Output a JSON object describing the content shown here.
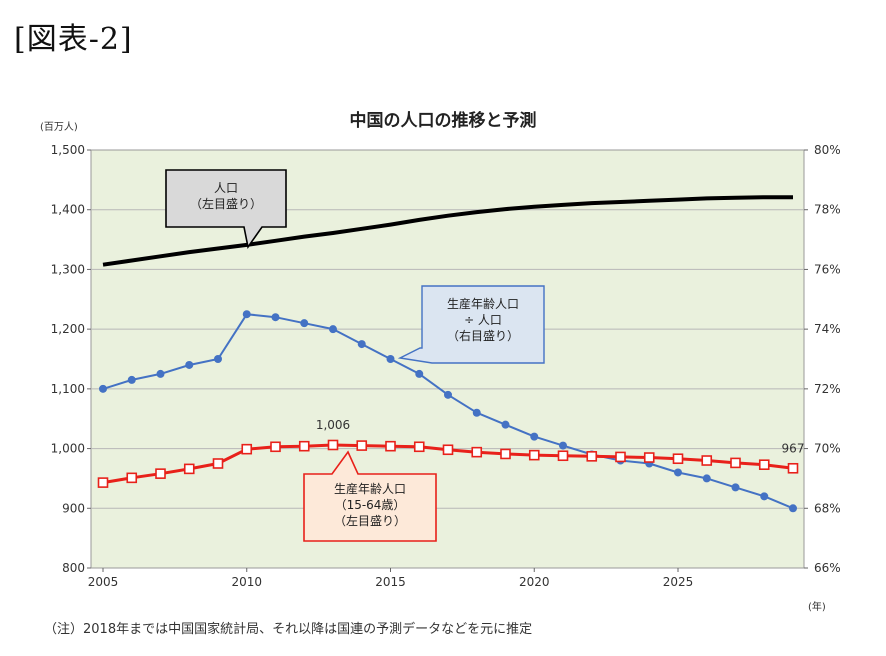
{
  "figure_label": "[図表-2]",
  "chart_data": {
    "type": "line",
    "title": "中国の人口の推移と予測",
    "left_axis": {
      "unit": "(百万人)",
      "min": 800,
      "max": 1500,
      "step": 100,
      "ticks": [
        "800",
        "900",
        "1,000",
        "1,100",
        "1,200",
        "1,300",
        "1,400",
        "1,500"
      ]
    },
    "right_axis": {
      "min": 66,
      "max": 80,
      "step": 2,
      "ticks": [
        "66%",
        "68%",
        "70%",
        "72%",
        "74%",
        "76%",
        "78%",
        "80%"
      ]
    },
    "x_axis": {
      "min": 2005,
      "max": 2030,
      "unit": "(年)",
      "ticks": [
        "2005",
        "2010",
        "2015",
        "2020",
        "2025"
      ]
    },
    "grid": true,
    "series": [
      {
        "name": "人口（左目盛り）",
        "axis": "left",
        "color": "#000000",
        "marker": "none",
        "x": [
          2005,
          2006,
          2007,
          2008,
          2009,
          2010,
          2011,
          2012,
          2013,
          2014,
          2015,
          2016,
          2017,
          2018,
          2019,
          2020,
          2021,
          2022,
          2023,
          2024,
          2025,
          2026,
          2027,
          2028,
          2029
        ],
        "values": [
          1308,
          1315,
          1322,
          1329,
          1335,
          1341,
          1348,
          1355,
          1361,
          1368,
          1375,
          1383,
          1390,
          1396,
          1401,
          1405,
          1408,
          1411,
          1413,
          1415,
          1417,
          1419,
          1420,
          1421,
          1421
        ]
      },
      {
        "name": "生産年齢人口÷人口（右目盛り）",
        "axis": "right",
        "color": "#4472c4",
        "marker": "circle",
        "x": [
          2005,
          2006,
          2007,
          2008,
          2009,
          2010,
          2011,
          2012,
          2013,
          2014,
          2015,
          2016,
          2017,
          2018,
          2019,
          2020,
          2021,
          2022,
          2023,
          2024,
          2025,
          2026,
          2027,
          2028,
          2029
        ],
        "values": [
          72.0,
          72.3,
          72.5,
          72.8,
          73.0,
          74.5,
          74.4,
          74.2,
          74.0,
          73.5,
          73.0,
          72.5,
          71.8,
          71.2,
          70.8,
          70.4,
          70.1,
          69.8,
          69.6,
          69.5,
          69.2,
          69.0,
          68.7,
          68.4,
          68.0
        ]
      },
      {
        "name": "生産年齢人口（15-64歳）（左目盛り）",
        "axis": "left",
        "color": "#e8211a",
        "marker": "square",
        "x": [
          2005,
          2006,
          2007,
          2008,
          2009,
          2010,
          2011,
          2012,
          2013,
          2014,
          2015,
          2016,
          2017,
          2018,
          2019,
          2020,
          2021,
          2022,
          2023,
          2024,
          2025,
          2026,
          2027,
          2028,
          2029
        ],
        "values": [
          943,
          951,
          958,
          966,
          975,
          999,
          1003,
          1004,
          1006,
          1005,
          1004,
          1003,
          998,
          994,
          991,
          989,
          988,
          987,
          986,
          985,
          983,
          980,
          976,
          973,
          967
        ]
      }
    ],
    "annotations": [
      {
        "text": "1,006",
        "series": 2,
        "x": 2013
      },
      {
        "text": "967",
        "series": 2,
        "x": 2029
      }
    ]
  },
  "callouts": {
    "population": {
      "line1": "人口",
      "line2": "（左目盛り）"
    },
    "ratio": {
      "line1": "生産年齢人口",
      "line2": "÷ 人口",
      "line3": "（右目盛り）"
    },
    "working": {
      "line1": "生産年齢人口",
      "line2": "（15-64歳）",
      "line3": "（左目盛り）"
    }
  },
  "note": "（注）2018年までは中国国家統計局、それ以降は国連の予測データなどを元に推定"
}
